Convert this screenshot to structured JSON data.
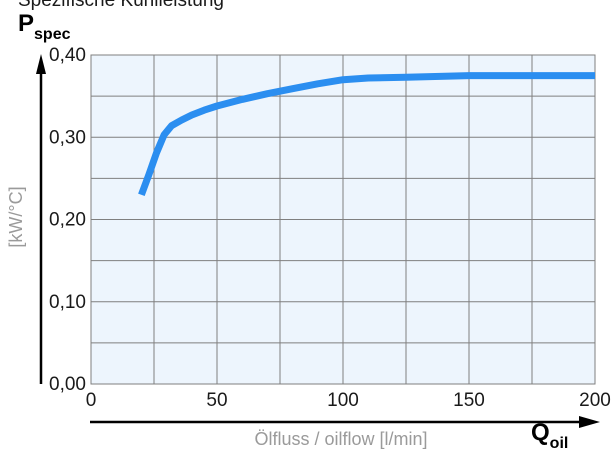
{
  "caption": "Spezifische Kühlleistung",
  "chart_data": {
    "type": "line",
    "title": "",
    "y_symbol": "P",
    "y_symbol_sub": "spec",
    "ylabel": "[kW/°C]",
    "x_symbol": "Q",
    "x_symbol_sub": "oil",
    "xlabel": "Ölfluss / oilflow [l/min]",
    "xlim": [
      0,
      200
    ],
    "ylim": [
      0,
      0.4
    ],
    "grid": true,
    "x_ticks": [
      {
        "value": 0,
        "label": "0"
      },
      {
        "value": 50,
        "label": "50"
      },
      {
        "value": 100,
        "label": "100"
      },
      {
        "value": 150,
        "label": "150"
      },
      {
        "value": 200,
        "label": "200"
      }
    ],
    "y_ticks": [
      {
        "value": 0.0,
        "label": "0,00"
      },
      {
        "value": 0.1,
        "label": "0,10"
      },
      {
        "value": 0.2,
        "label": "0,20"
      },
      {
        "value": 0.3,
        "label": "0,30"
      },
      {
        "value": 0.4,
        "label": "0,40"
      }
    ],
    "series": [
      {
        "color": "#2b8ef0",
        "points": [
          [
            20,
            0.23
          ],
          [
            23,
            0.255
          ],
          [
            26,
            0.281
          ],
          [
            29,
            0.303
          ],
          [
            32,
            0.314
          ],
          [
            36,
            0.321
          ],
          [
            40,
            0.327
          ],
          [
            45,
            0.333
          ],
          [
            50,
            0.338
          ],
          [
            60,
            0.346
          ],
          [
            70,
            0.353
          ],
          [
            80,
            0.359
          ],
          [
            90,
            0.365
          ],
          [
            100,
            0.37
          ],
          [
            110,
            0.372
          ],
          [
            125,
            0.373
          ],
          [
            150,
            0.375
          ],
          [
            175,
            0.375
          ],
          [
            200,
            0.375
          ]
        ]
      }
    ]
  },
  "colors": {
    "plot_background": "#edf5fd",
    "grid": "#7f7f7f"
  }
}
